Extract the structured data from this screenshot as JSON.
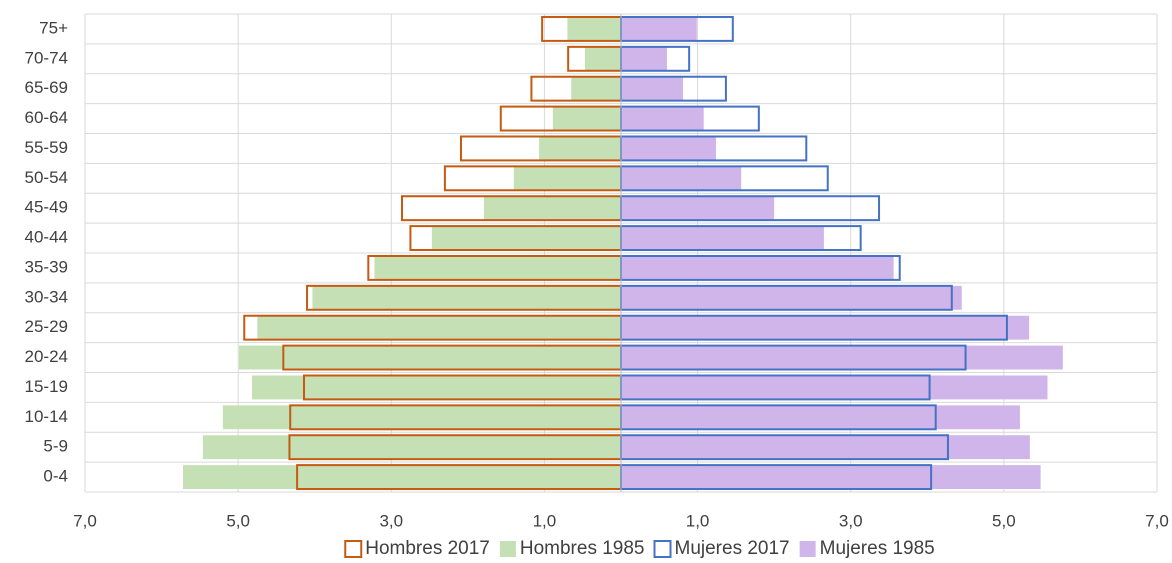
{
  "chart_data": {
    "type": "pyramid",
    "categories": [
      "0-4",
      "5-9",
      "10-14",
      "15-19",
      "20-24",
      "25-29",
      "30-34",
      "35-39",
      "40-44",
      "45-49",
      "50-54",
      "55-59",
      "60-64",
      "65-69",
      "70-74",
      "75+"
    ],
    "series": [
      {
        "name": "Hombres 2017",
        "color": "#c55a11",
        "outline": true,
        "values": [
          -4.23,
          -4.33,
          -4.32,
          -4.14,
          -4.41,
          -4.92,
          -4.1,
          -3.3,
          -2.75,
          -2.86,
          -2.3,
          -2.09,
          -1.57,
          -1.17,
          -0.69,
          -1.03
        ]
      },
      {
        "name": "Hombres 1985",
        "color": "#c5e0b4",
        "outline": false,
        "values": [
          -5.72,
          -5.46,
          -5.2,
          -4.82,
          -4.99,
          -4.75,
          -4.03,
          -3.22,
          -2.47,
          -1.79,
          -1.4,
          -1.07,
          -0.89,
          -0.65,
          -0.47,
          -0.7
        ]
      },
      {
        "name": "Mujeres 2017",
        "color": "#4472c4",
        "outline": true,
        "values": [
          4.05,
          4.27,
          4.11,
          4.03,
          4.5,
          5.04,
          4.32,
          3.64,
          3.13,
          3.37,
          2.7,
          2.42,
          1.8,
          1.37,
          0.89,
          1.46
        ]
      },
      {
        "name": "Mujeres 1985",
        "color": "#d0b5ea",
        "outline": false,
        "values": [
          5.48,
          5.34,
          5.21,
          5.57,
          5.77,
          5.33,
          4.45,
          3.56,
          2.65,
          2.0,
          1.57,
          1.24,
          1.08,
          0.81,
          0.6,
          0.99
        ]
      }
    ],
    "xlim": [
      -7,
      7
    ],
    "xticks": [
      {
        "value": -7,
        "label": "7,0"
      },
      {
        "value": -5,
        "label": "5,0"
      },
      {
        "value": -3,
        "label": "3,0"
      },
      {
        "value": -1,
        "label": "1,0"
      },
      {
        "value": 1,
        "label": "1,0"
      },
      {
        "value": 3,
        "label": "3,0"
      },
      {
        "value": 5,
        "label": "5,0"
      },
      {
        "value": 7,
        "label": "7,0"
      }
    ],
    "grid": true,
    "legend": "bottom"
  }
}
